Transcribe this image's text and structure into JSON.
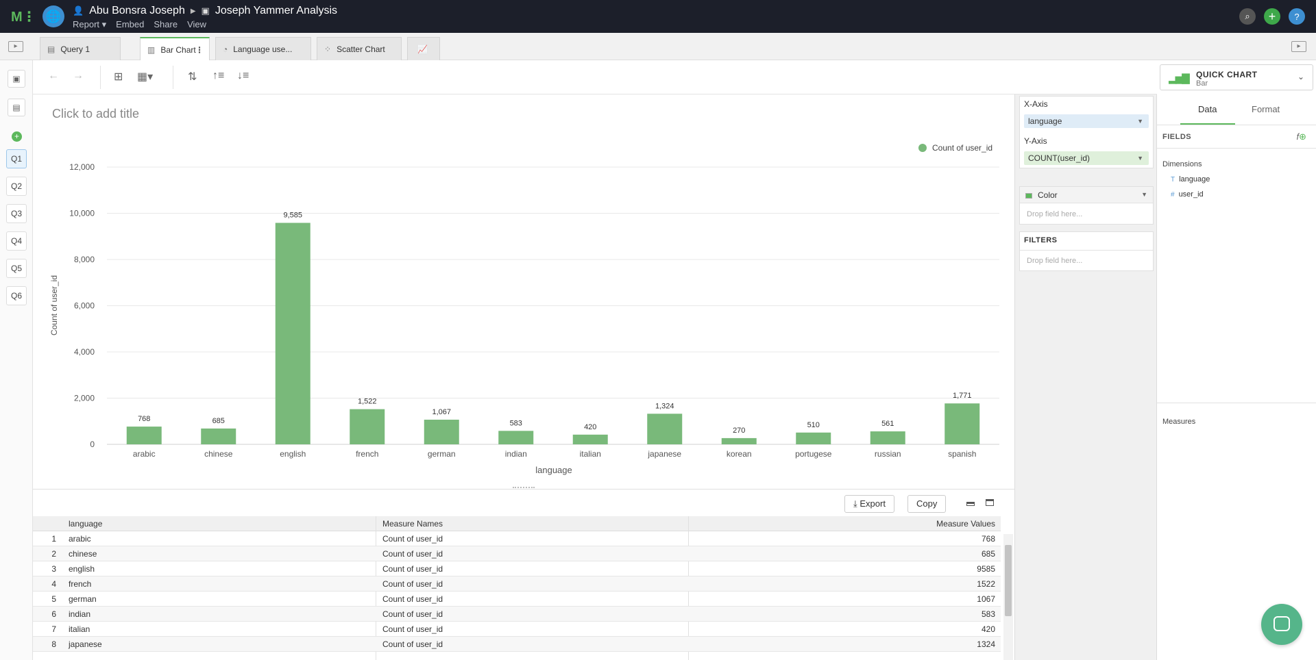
{
  "topbar": {
    "user_name": "Abu Bonsra Joseph",
    "report_title": "Joseph Yammer Analysis",
    "menu": [
      "Report",
      "Embed",
      "Share",
      "View"
    ]
  },
  "tabs": [
    {
      "label": "Query 1",
      "active": false
    },
    {
      "label": "Bar Chart",
      "active": true
    },
    {
      "label": "Language use...",
      "active": false
    },
    {
      "label": "Scatter Chart",
      "active": false
    }
  ],
  "leftrail": {
    "queries": [
      "Q1",
      "Q2",
      "Q3",
      "Q4",
      "Q5",
      "Q6"
    ],
    "active_query": "Q1"
  },
  "quick_chart": {
    "title": "QUICK CHART",
    "subtitle": "Bar"
  },
  "chart": {
    "title_placeholder": "Click to add title"
  },
  "chart_data": {
    "type": "bar",
    "categories": [
      "arabic",
      "chinese",
      "english",
      "french",
      "german",
      "indian",
      "italian",
      "japanese",
      "korean",
      "portugese",
      "russian",
      "spanish"
    ],
    "values": [
      768,
      685,
      9585,
      1522,
      1067,
      583,
      420,
      1324,
      270,
      510,
      561,
      1771
    ],
    "value_labels": [
      "768",
      "685",
      "9,585",
      "1,522",
      "1,067",
      "583",
      "420",
      "1,324",
      "270",
      "510",
      "561",
      "1,771"
    ],
    "xlabel": "language",
    "ylabel": "Count of user_id",
    "ylim": [
      0,
      12000
    ],
    "yticks": [
      0,
      2000,
      4000,
      6000,
      8000,
      10000,
      12000
    ],
    "ytick_labels": [
      "0",
      "2,000",
      "4,000",
      "6,000",
      "8,000",
      "10,000",
      "12,000"
    ],
    "legend": "Count of user_id",
    "legend_position": "top-right",
    "grid": true,
    "color": "#79b97a"
  },
  "table_bar": {
    "export": "Export",
    "copy": "Copy"
  },
  "table": {
    "columns": [
      "language",
      "Measure Names",
      "Measure Values"
    ],
    "rows": [
      {
        "n": "1",
        "language": "arabic",
        "measure": "Count of user_id",
        "value": "768"
      },
      {
        "n": "2",
        "language": "chinese",
        "measure": "Count of user_id",
        "value": "685"
      },
      {
        "n": "3",
        "language": "english",
        "measure": "Count of user_id",
        "value": "9585"
      },
      {
        "n": "4",
        "language": "french",
        "measure": "Count of user_id",
        "value": "1522"
      },
      {
        "n": "5",
        "language": "german",
        "measure": "Count of user_id",
        "value": "1067"
      },
      {
        "n": "6",
        "language": "indian",
        "measure": "Count of user_id",
        "value": "583"
      },
      {
        "n": "7",
        "language": "italian",
        "measure": "Count of user_id",
        "value": "420"
      },
      {
        "n": "8",
        "language": "japanese",
        "measure": "Count of user_id",
        "value": "1324"
      }
    ]
  },
  "shelf": {
    "x_label": "X-Axis",
    "x_field": "language",
    "y_label": "Y-Axis",
    "y_field": "COUNT(user_id)",
    "color_label": "Color",
    "drop_placeholder": "Drop field here...",
    "filters_label": "FILTERS",
    "filters_placeholder": "Drop field here..."
  },
  "rpanel": {
    "tab_data": "Data",
    "tab_format": "Format",
    "fields_label": "FIELDS",
    "dimensions_label": "Dimensions",
    "dimensions": [
      {
        "type": "T",
        "name": "language"
      },
      {
        "type": "#",
        "name": "user_id"
      }
    ],
    "measures_label": "Measures"
  }
}
